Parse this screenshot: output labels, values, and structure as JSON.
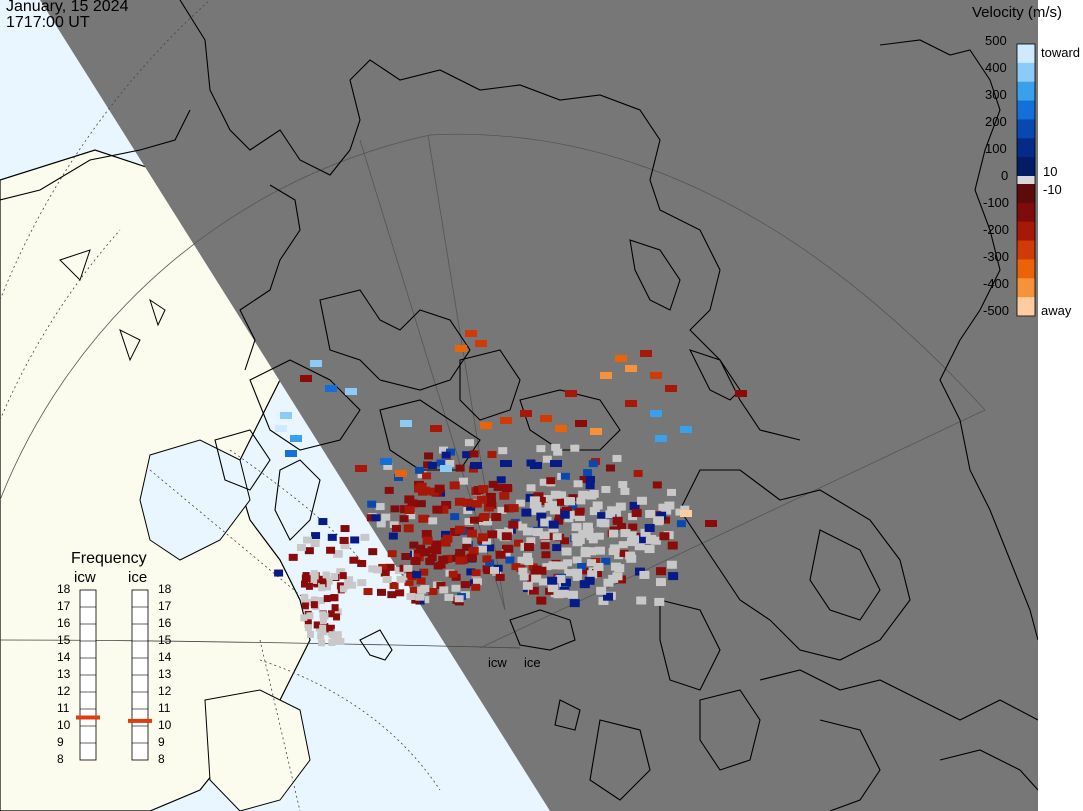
{
  "title": {
    "date": "January, 15 2024",
    "time": "1717:00 UT"
  },
  "velocity_legend": {
    "title": "Velocity (m/s)",
    "ticks": [
      "500",
      "400",
      "300",
      "200",
      "100",
      "10",
      "0",
      "-10",
      "-100",
      "-200",
      "-300",
      "-400",
      "-500"
    ],
    "toward_label": "toward",
    "away_label": "away",
    "colors": {
      "toward": [
        "#cfeaff",
        "#8ccaf8",
        "#3aa0ec",
        "#1470d8",
        "#0848b0",
        "#062a8a",
        "#041c66"
      ],
      "away": [
        "#5c0a0a",
        "#7e0c0c",
        "#a81808",
        "#cf3a06",
        "#eb6308",
        "#f7923a",
        "#ffcba0"
      ]
    }
  },
  "frequency_legend": {
    "title": "Frequency",
    "columns": [
      "icw",
      "ice"
    ],
    "ticks": [
      "18",
      "17",
      "16",
      "15",
      "14",
      "13",
      "12",
      "11",
      "10",
      "9",
      "8"
    ],
    "icw_value": 10.5,
    "ice_value": 10.3,
    "marker_color": "#e03c10"
  },
  "radar_labels": [
    "icw",
    "ice"
  ],
  "colors": {
    "night": "#777777",
    "day_land": "#fbfbee",
    "day_sea": "#eaf6ff",
    "ground_scatter": "#c8c8c8",
    "coastline": "#000000"
  }
}
